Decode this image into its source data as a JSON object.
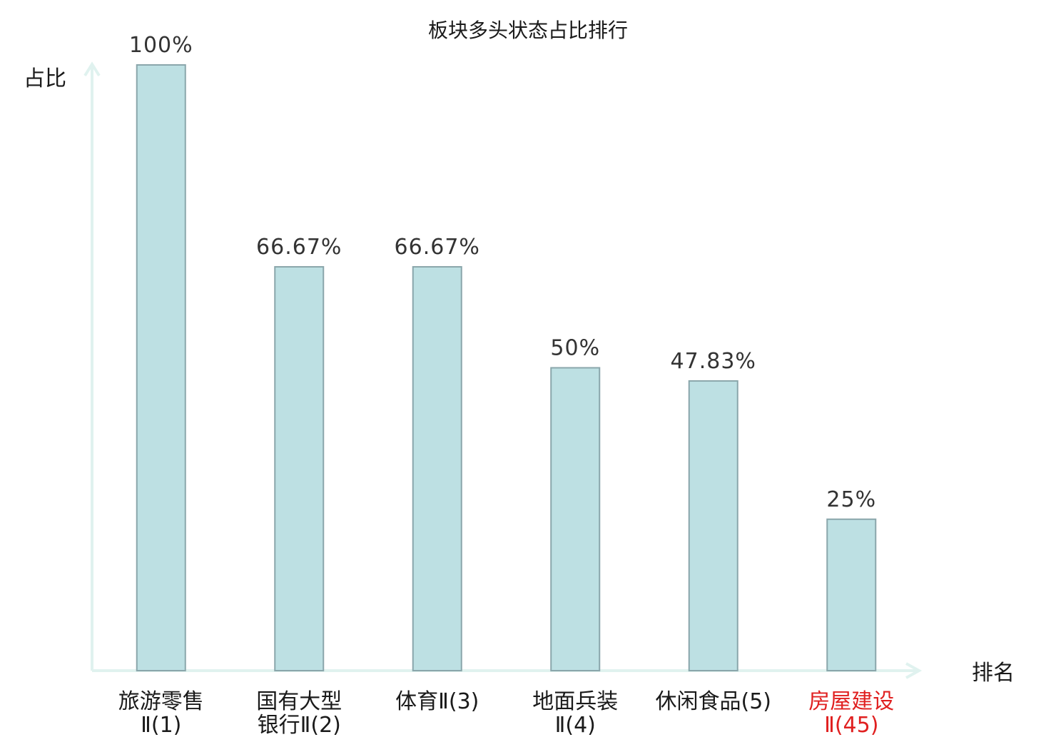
{
  "chart_data": {
    "type": "bar",
    "title": "板块多头状态占比排行",
    "ylabel": "占比",
    "xlabel": "排名",
    "ylim": [
      0,
      100
    ],
    "unit": "%",
    "grid": false,
    "categories": [
      [
        "旅游零售",
        "Ⅱ(1)"
      ],
      [
        "国有大型",
        "银行Ⅱ(2)"
      ],
      [
        "体育Ⅱ(3)"
      ],
      [
        "地面兵装",
        "Ⅱ(4)"
      ],
      [
        "休闲食品(5)"
      ],
      [
        "房屋建设",
        "Ⅱ(45)"
      ]
    ],
    "values": [
      100,
      66.67,
      66.67,
      50,
      47.83,
      25
    ],
    "value_labels": [
      "100%",
      "66.67%",
      "66.67%",
      "50%",
      "47.83%",
      "25%"
    ],
    "highlight_index": 5,
    "colors": {
      "bar_fill": "#bde0e3",
      "bar_stroke": "#8aa6ab",
      "axis": "#e0f2ef",
      "text": "#1a1a1a",
      "highlight": "#e02020"
    }
  }
}
